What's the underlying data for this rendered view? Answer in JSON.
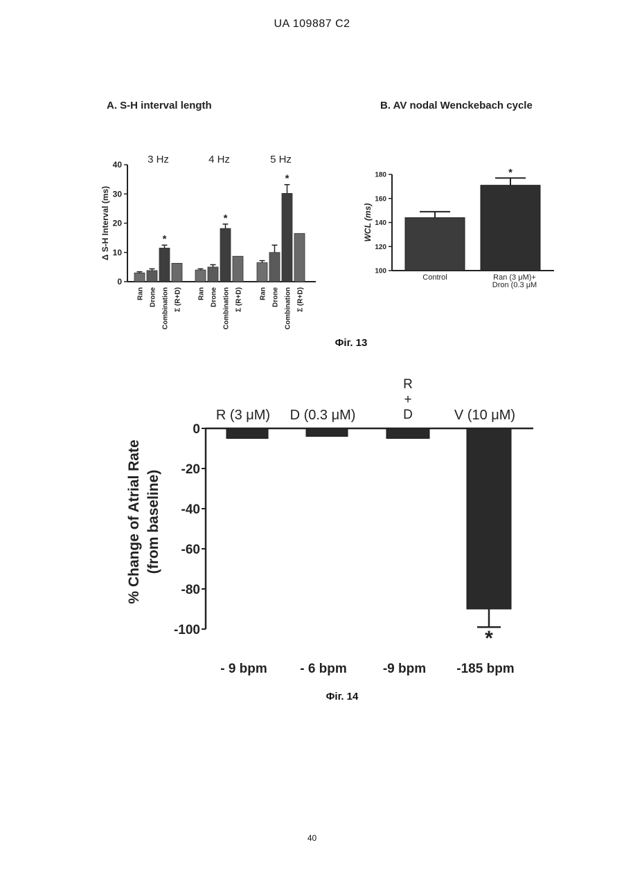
{
  "header": "UA 109887 C2",
  "page_number": "40",
  "fig13": {
    "caption": "Фіг. 13",
    "panel_a_title": "A. S-H interval length",
    "panel_b_title": "B. AV nodal Wenckebach cycle"
  },
  "fig14": {
    "caption": "Фіг. 14"
  },
  "chart_data": [
    {
      "type": "bar",
      "ylabel": "Δ S-H Interval (ms)",
      "ylim": [
        0,
        40
      ],
      "yticks": [
        "0",
        "10",
        "20",
        "30",
        "40"
      ],
      "groups": [
        {
          "label": "3 Hz",
          "categories": [
            "Ran",
            "Drone",
            "Combination",
            "Σ (R+D)"
          ],
          "values": [
            3,
            3.8,
            11.5,
            6.3
          ],
          "errors": [
            0.4,
            0.6,
            1,
            0
          ],
          "significant": [
            false,
            false,
            true,
            false
          ]
        },
        {
          "label": "4 Hz",
          "categories": [
            "Ran",
            "Drone",
            "Combination",
            "Σ (R+D)"
          ],
          "values": [
            4,
            5,
            18.2,
            8.7
          ],
          "errors": [
            0.4,
            0.8,
            1.5,
            0
          ],
          "significant": [
            false,
            false,
            true,
            false
          ]
        },
        {
          "label": "5 Hz",
          "categories": [
            "Ran",
            "Drone",
            "Combination",
            "Σ (R+D)"
          ],
          "values": [
            6.5,
            10,
            30.2,
            16.5
          ],
          "errors": [
            0.7,
            2.5,
            3,
            0
          ],
          "significant": [
            false,
            false,
            true,
            false
          ]
        }
      ],
      "significance_mark": "*"
    },
    {
      "type": "bar",
      "ylabel": "WCL (ms)",
      "ylim": [
        100,
        180
      ],
      "yticks": [
        "100",
        "120",
        "140",
        "160",
        "180"
      ],
      "categories": [
        "Control",
        "Ran (3 μM)+\nDron (0.3 μM"
      ],
      "values": [
        144,
        171
      ],
      "errors": [
        5,
        6
      ],
      "significant": [
        false,
        true
      ],
      "significance_mark": "*"
    },
    {
      "type": "bar",
      "ylabel": "% Change of Atrial Rate\n(from baseline)",
      "ylim": [
        -100,
        0
      ],
      "yticks": [
        "0",
        "-20",
        "-40",
        "-60",
        "-80",
        "-100"
      ],
      "categories": [
        "R (3 μM)",
        "D (0.3 μM)",
        "R\n+\nD",
        "V (10 μM)"
      ],
      "values": [
        -5,
        -4,
        -5,
        -90
      ],
      "errors": [
        0.5,
        0.5,
        0.5,
        9
      ],
      "significant": [
        false,
        false,
        false,
        true
      ],
      "significance_mark": "*",
      "bpm_labels": [
        "- 9 bpm",
        "- 6 bpm",
        "-9 bpm",
        "-185 bpm"
      ]
    }
  ]
}
